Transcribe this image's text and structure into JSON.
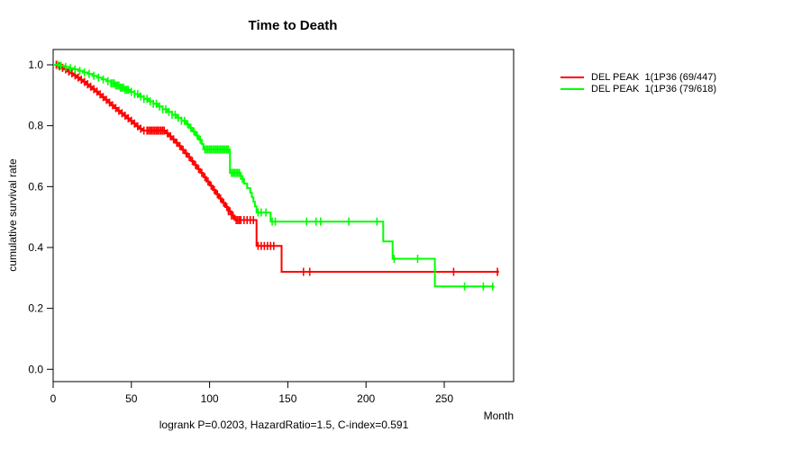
{
  "chart": {
    "title": "Time to Death",
    "xlabel": "Month",
    "ylabel": "cumulative survival rate",
    "footer": "logrank P=0.0203, HazardRatio=1.5, C-index=0.591"
  },
  "chart_data": {
    "type": "line",
    "subtype": "kaplan-meier-step-curves",
    "title": "Time to Death",
    "xlabel": "Month",
    "ylabel": "cumulative survival rate",
    "annotation": "logrank P=0.0203, HazardRatio=1.5, C-index=0.591",
    "xlim": [
      0,
      294
    ],
    "ylim": [
      0.0,
      1.0
    ],
    "xticks": [
      0,
      50,
      100,
      150,
      200,
      250
    ],
    "yticks": [
      0.0,
      0.2,
      0.4,
      0.6,
      0.8,
      1.0
    ],
    "grid": false,
    "legend_position": "right-outside",
    "axis_color": "#000000",
    "series": [
      {
        "name": "DEL PEAK  1(1P36 (69/447)",
        "color": "#ff0000",
        "events_over_n": "69/447",
        "end_month": 285,
        "steps": [
          [
            0,
            1.0
          ],
          [
            3,
            0.995
          ],
          [
            5,
            0.99
          ],
          [
            7,
            0.985
          ],
          [
            9,
            0.978
          ],
          [
            11,
            0.972
          ],
          [
            13,
            0.965
          ],
          [
            15,
            0.958
          ],
          [
            17,
            0.951
          ],
          [
            19,
            0.944
          ],
          [
            21,
            0.936
          ],
          [
            23,
            0.928
          ],
          [
            25,
            0.92
          ],
          [
            27,
            0.912
          ],
          [
            29,
            0.903
          ],
          [
            31,
            0.894
          ],
          [
            33,
            0.885
          ],
          [
            35,
            0.876
          ],
          [
            37,
            0.867
          ],
          [
            39,
            0.858
          ],
          [
            41,
            0.849
          ],
          [
            43,
            0.841
          ],
          [
            45,
            0.833
          ],
          [
            47,
            0.824
          ],
          [
            49,
            0.816
          ],
          [
            51,
            0.807
          ],
          [
            53,
            0.798
          ],
          [
            55,
            0.79
          ],
          [
            57,
            0.784
          ],
          [
            72,
            0.775
          ],
          [
            74,
            0.765
          ],
          [
            76,
            0.755
          ],
          [
            78,
            0.744
          ],
          [
            80,
            0.733
          ],
          [
            82,
            0.721
          ],
          [
            84,
            0.709
          ],
          [
            86,
            0.697
          ],
          [
            88,
            0.684
          ],
          [
            90,
            0.671
          ],
          [
            92,
            0.658
          ],
          [
            94,
            0.645
          ],
          [
            96,
            0.631
          ],
          [
            98,
            0.617
          ],
          [
            100,
            0.603
          ],
          [
            102,
            0.589
          ],
          [
            104,
            0.575
          ],
          [
            106,
            0.561
          ],
          [
            108,
            0.547
          ],
          [
            110,
            0.533
          ],
          [
            112,
            0.519
          ],
          [
            114,
            0.505
          ],
          [
            116,
            0.49
          ],
          [
            130,
            0.405
          ],
          [
            146,
            0.32
          ]
        ],
        "censor_months": [
          2,
          4,
          6,
          8,
          10,
          12,
          14,
          16,
          18,
          20,
          22,
          24,
          26,
          28,
          30,
          32,
          34,
          36,
          38,
          40,
          42,
          44,
          46,
          48,
          50,
          52,
          54,
          56,
          58,
          60,
          61,
          62,
          63,
          64,
          65,
          66,
          67,
          68,
          69,
          70,
          71,
          73,
          75,
          77,
          79,
          81,
          83,
          85,
          87,
          89,
          91,
          93,
          95,
          97,
          99,
          101,
          103,
          105,
          107,
          109,
          111,
          112,
          113,
          114,
          115,
          117,
          118,
          119,
          120,
          122,
          124,
          126,
          128,
          131,
          133,
          135,
          137,
          139,
          141,
          160,
          164,
          256,
          284
        ]
      },
      {
        "name": "DEL PEAK  1(1P36 (79/618)",
        "color": "#00ff00",
        "events_over_n": "79/618",
        "end_month": 282,
        "steps": [
          [
            0,
            1.0
          ],
          [
            4,
            0.997
          ],
          [
            7,
            0.993
          ],
          [
            10,
            0.989
          ],
          [
            13,
            0.985
          ],
          [
            16,
            0.98
          ],
          [
            19,
            0.975
          ],
          [
            22,
            0.97
          ],
          [
            25,
            0.964
          ],
          [
            28,
            0.958
          ],
          [
            31,
            0.952
          ],
          [
            34,
            0.946
          ],
          [
            37,
            0.939
          ],
          [
            40,
            0.932
          ],
          [
            43,
            0.925
          ],
          [
            46,
            0.918
          ],
          [
            49,
            0.911
          ],
          [
            52,
            0.904
          ],
          [
            55,
            0.896
          ],
          [
            58,
            0.888
          ],
          [
            61,
            0.88
          ],
          [
            64,
            0.872
          ],
          [
            67,
            0.863
          ],
          [
            70,
            0.854
          ],
          [
            73,
            0.845
          ],
          [
            76,
            0.836
          ],
          [
            79,
            0.826
          ],
          [
            82,
            0.816
          ],
          [
            85,
            0.805
          ],
          [
            87,
            0.793
          ],
          [
            89,
            0.781
          ],
          [
            91,
            0.768
          ],
          [
            93,
            0.754
          ],
          [
            95,
            0.74
          ],
          [
            96,
            0.722
          ],
          [
            113,
            0.645
          ],
          [
            120,
            0.625
          ],
          [
            122,
            0.61
          ],
          [
            124,
            0.595
          ],
          [
            126,
            0.58
          ],
          [
            127,
            0.565
          ],
          [
            128,
            0.55
          ],
          [
            129,
            0.535
          ],
          [
            130,
            0.515
          ],
          [
            139,
            0.485
          ],
          [
            211,
            0.42
          ],
          [
            217,
            0.363
          ],
          [
            244,
            0.272
          ]
        ],
        "censor_months": [
          3,
          5,
          8,
          11,
          14,
          17,
          20,
          23,
          26,
          29,
          32,
          35,
          37,
          38,
          39,
          40,
          41,
          42,
          43,
          44,
          45,
          46,
          47,
          48,
          50,
          52,
          54,
          56,
          58,
          60,
          62,
          64,
          66,
          68,
          70,
          72,
          74,
          76,
          78,
          80,
          82,
          84,
          86,
          88,
          90,
          92,
          94,
          97,
          98,
          99,
          100,
          101,
          102,
          103,
          104,
          105,
          106,
          107,
          108,
          109,
          110,
          111,
          112,
          114,
          115,
          116,
          117,
          118,
          119,
          121,
          131,
          133,
          136,
          140,
          142,
          162,
          168,
          171,
          189,
          207,
          218,
          233,
          263,
          275,
          281
        ]
      }
    ]
  }
}
